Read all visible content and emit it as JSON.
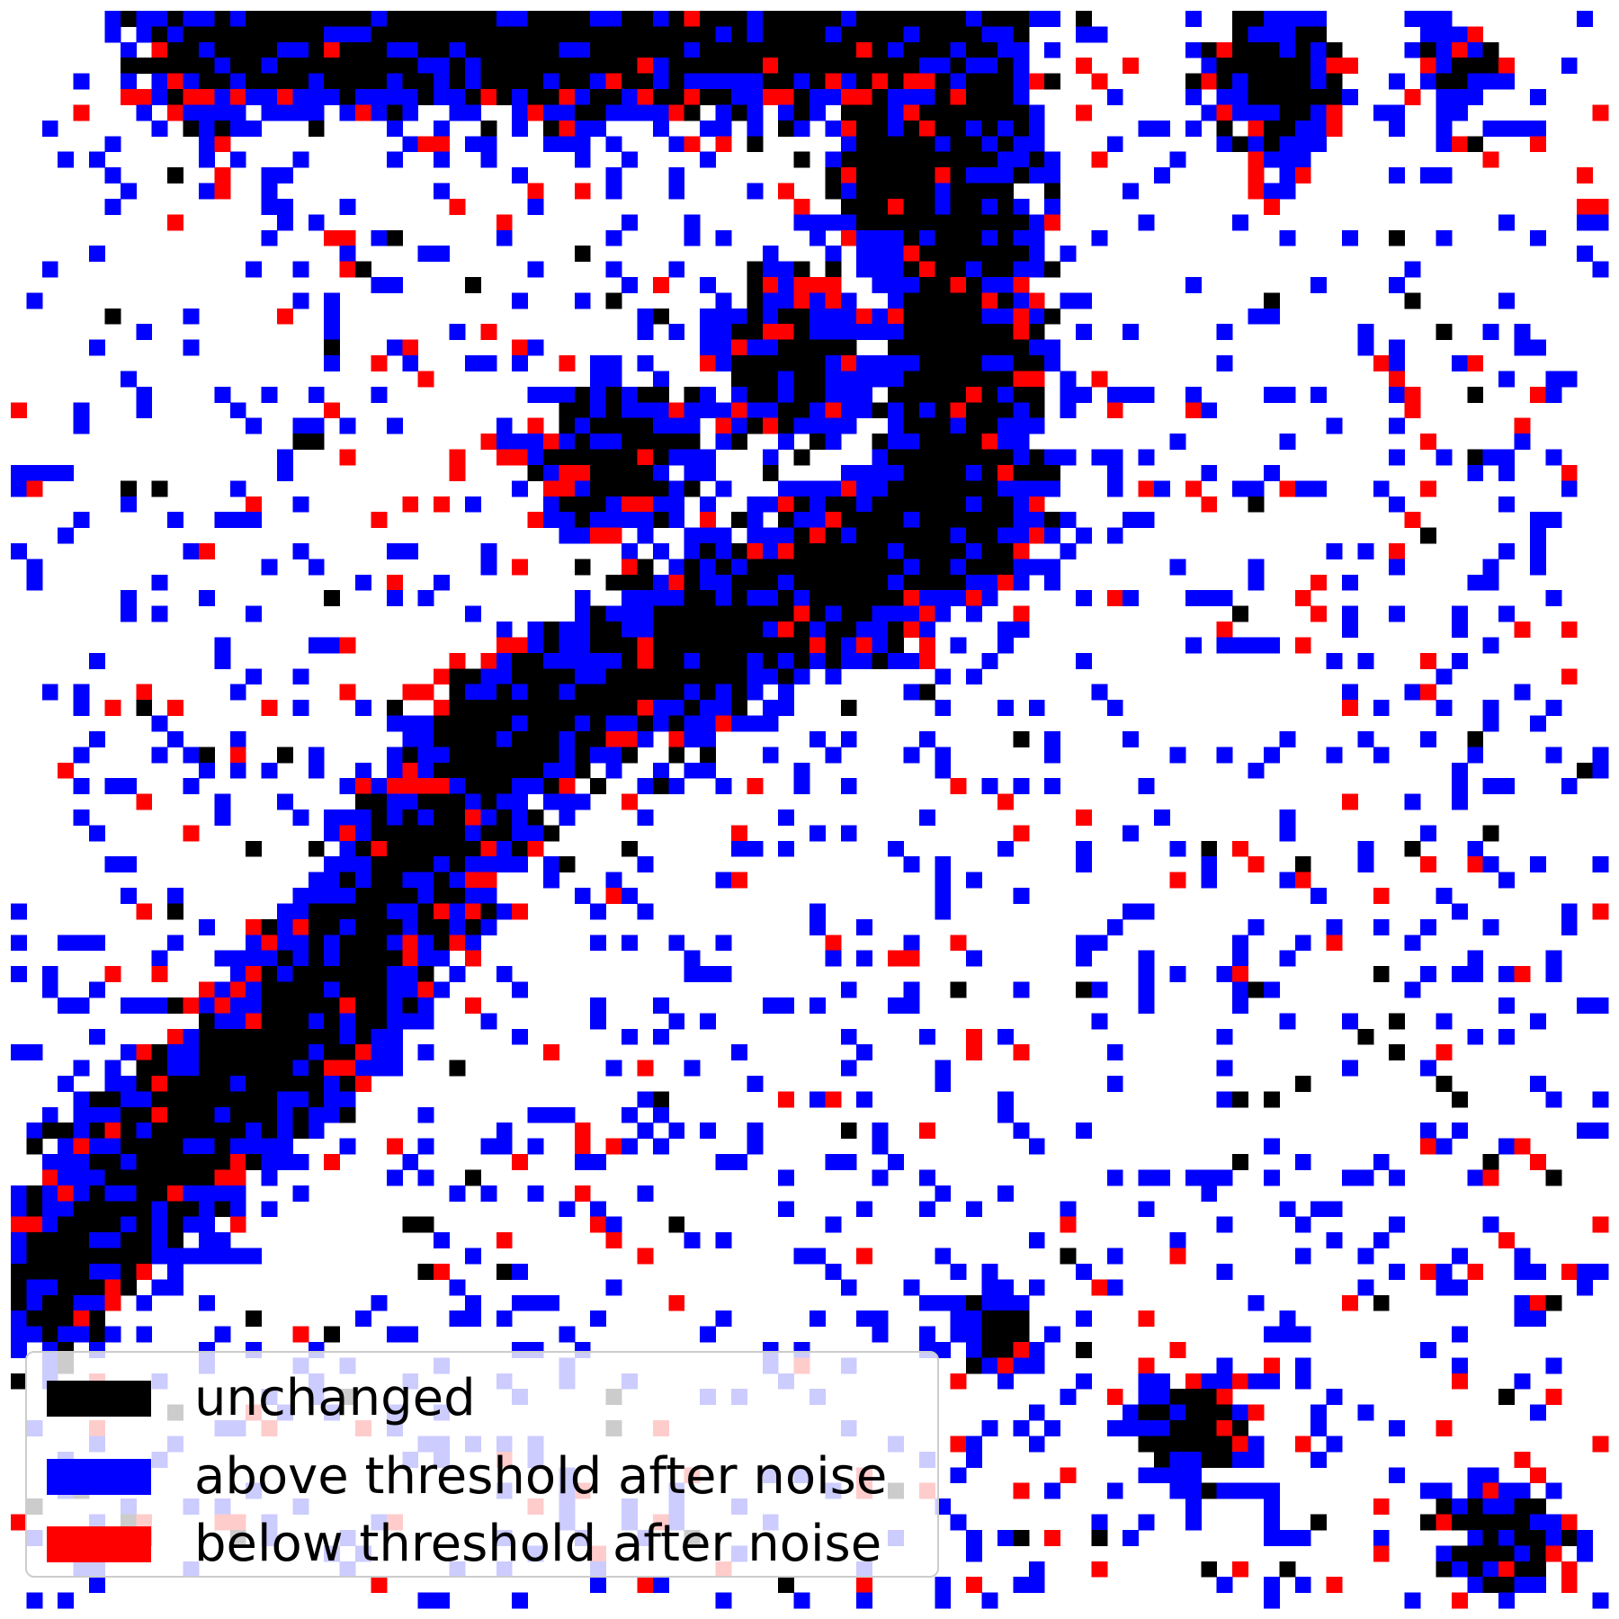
{
  "chart_data": {
    "type": "heatmap",
    "title": "",
    "xlabel": "",
    "ylabel": "",
    "axes_visible": false,
    "grid": false,
    "legend_position": "bottom-left",
    "categories": [
      {
        "key": "unchanged",
        "label": "unchanged",
        "color": "#000000"
      },
      {
        "key": "above",
        "label": "above threshold after noise",
        "color": "#0000ff"
      },
      {
        "key": "below",
        "label": "below threshold after noise",
        "color": "#ff0000"
      }
    ],
    "grid_size": 102,
    "description_of_pattern": "",
    "regions": [
      {
        "category": "unchanged",
        "shape": "diagonal-band",
        "path": [
          [
            12,
            1
          ],
          [
            60,
            1
          ],
          [
            60,
            32
          ],
          [
            47,
            38
          ],
          [
            30,
            47
          ],
          [
            20,
            62
          ],
          [
            12,
            70
          ],
          [
            2,
            80
          ]
        ],
        "width": 6
      },
      {
        "category": "unchanged",
        "shape": "blob",
        "center": [
          57,
          10
        ],
        "radius": 7
      },
      {
        "category": "unchanged",
        "shape": "blob",
        "center": [
          80,
          4
        ],
        "radius": 5
      },
      {
        "category": "unchanged",
        "shape": "blob",
        "center": [
          92,
          3
        ],
        "radius": 3
      },
      {
        "category": "unchanged",
        "shape": "blob",
        "center": [
          49,
          22
        ],
        "radius": 6
      },
      {
        "category": "unchanged",
        "shape": "blob",
        "center": [
          38,
          28
        ],
        "radius": 6
      },
      {
        "category": "unchanged",
        "shape": "blob",
        "center": [
          7,
          74
        ],
        "radius": 4
      },
      {
        "category": "unchanged",
        "shape": "blob",
        "center": [
          75,
          90
        ],
        "radius": 4
      },
      {
        "category": "unchanged",
        "shape": "blob",
        "center": [
          95,
          97
        ],
        "radius": 4
      },
      {
        "category": "unchanged",
        "shape": "blob",
        "center": [
          63,
          84
        ],
        "radius": 3
      }
    ]
  },
  "legend": {
    "items": [
      {
        "label": "unchanged",
        "color": "#000000"
      },
      {
        "label": "above threshold after noise",
        "color": "#0000ff"
      },
      {
        "label": "below threshold after noise",
        "color": "#ff0000"
      }
    ]
  }
}
